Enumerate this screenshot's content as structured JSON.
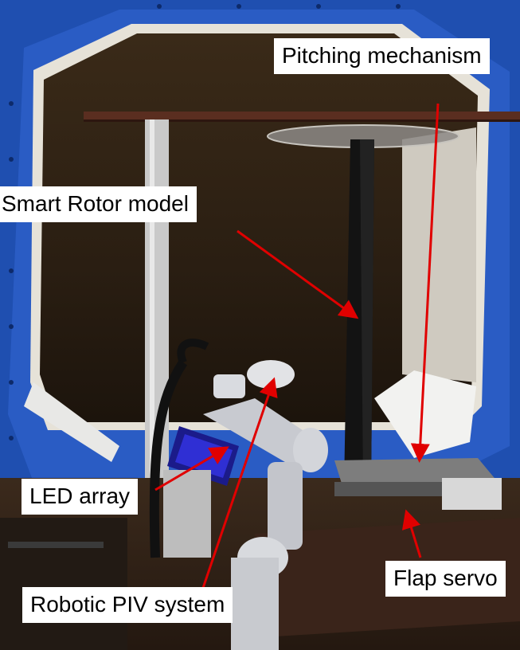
{
  "labels": {
    "pitching_mechanism": "Pitching mechanism",
    "smart_rotor_model": "Smart Rotor model",
    "led_array": "LED array",
    "robotic_piv_system": "Robotic PIV system",
    "flap_servo": "Flap servo"
  },
  "colors": {
    "frame_blue": "#1f4fb0",
    "annotation_red": "#e00000",
    "label_bg": "#ffffff"
  }
}
